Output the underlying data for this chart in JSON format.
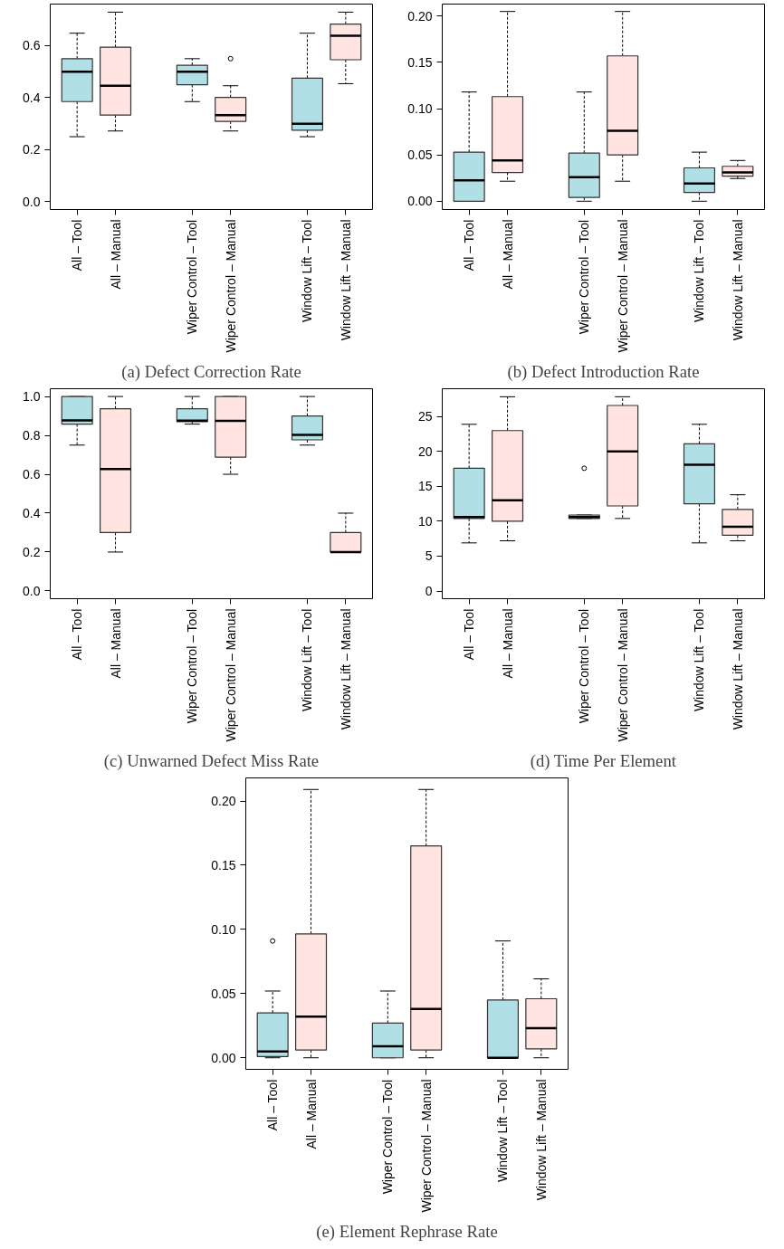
{
  "chart_data": [
    {
      "type": "box",
      "title": "(a) Defect Correction Rate",
      "categories": [
        "All – Tool",
        "All – Manual",
        null,
        "Wiper Control – Tool",
        "Wiper Control – Manual",
        null,
        "Window Lift – Tool",
        "Window Lift – Manual"
      ],
      "colors": [
        "#b0e0e6",
        "#ffe4e1",
        null,
        "#b0e0e6",
        "#ffe4e1",
        null,
        "#b0e0e6",
        "#ffe4e1"
      ],
      "ylim": [
        -0.03,
        0.76
      ],
      "yticks": [
        {
          "value": 0,
          "label": "0.0"
        },
        {
          "value": 0.2,
          "label": "0.2"
        },
        {
          "value": 0.4,
          "label": "0.4"
        },
        {
          "value": 0.6,
          "label": "0.6"
        }
      ],
      "boxes": [
        {
          "low": 0.25,
          "q1": 0.385,
          "median": 0.5,
          "q3": 0.55,
          "high": 0.648
        },
        {
          "low": 0.272,
          "q1": 0.333,
          "median": 0.446,
          "q3": 0.594,
          "high": 0.729
        },
        null,
        {
          "low": 0.385,
          "q1": 0.45,
          "median": 0.5,
          "q3": 0.525,
          "high": 0.55
        },
        {
          "low": 0.272,
          "q1": 0.309,
          "median": 0.333,
          "q3": 0.401,
          "high": 0.446,
          "outliers": [
            0.55
          ]
        },
        null,
        {
          "low": 0.25,
          "q1": 0.275,
          "median": 0.3,
          "q3": 0.475,
          "high": 0.648
        },
        {
          "low": 0.454,
          "q1": 0.546,
          "median": 0.638,
          "q3": 0.683,
          "high": 0.729
        }
      ]
    },
    {
      "type": "box",
      "title": "(b) Defect Introduction Rate",
      "categories": [
        "All – Tool",
        "All – Manual",
        null,
        "Wiper Control – Tool",
        "Wiper Control – Manual",
        null,
        "Window Lift – Tool",
        "Window Lift – Manual"
      ],
      "colors": [
        "#b0e0e6",
        "#ffe4e1",
        null,
        "#b0e0e6",
        "#ffe4e1",
        null,
        "#b0e0e6",
        "#ffe4e1"
      ],
      "ylim": [
        -0.009,
        0.213
      ],
      "yticks": [
        {
          "value": 0,
          "label": "0.00"
        },
        {
          "value": 0.05,
          "label": "0.05"
        },
        {
          "value": 0.1,
          "label": "0.10"
        },
        {
          "value": 0.15,
          "label": "0.15"
        },
        {
          "value": 0.2,
          "label": "0.20"
        }
      ],
      "boxes": [
        {
          "low": 0,
          "q1": 0,
          "median": 0.0226,
          "q3": 0.053,
          "high": 0.118
        },
        {
          "low": 0.0216,
          "q1": 0.031,
          "median": 0.044,
          "q3": 0.113,
          "high": 0.205
        },
        null,
        {
          "low": 0,
          "q1": 0.004,
          "median": 0.026,
          "q3": 0.052,
          "high": 0.118
        },
        {
          "low": 0.0216,
          "q1": 0.05,
          "median": 0.076,
          "q3": 0.157,
          "high": 0.205
        },
        null,
        {
          "low": 0,
          "q1": 0.0094,
          "median": 0.019,
          "q3": 0.036,
          "high": 0.053
        },
        {
          "low": 0.0245,
          "q1": 0.027,
          "median": 0.031,
          "q3": 0.0377,
          "high": 0.044
        }
      ]
    },
    {
      "type": "box",
      "title": "(c) Unwarned Defect Miss Rate",
      "categories": [
        "All – Tool",
        "All – Manual",
        null,
        "Wiper Control – Tool",
        "Wiper Control – Manual",
        null,
        "Window Lift – Tool",
        "Window Lift – Manual"
      ],
      "colors": [
        "#b0e0e6",
        "#ffe4e1",
        null,
        "#b0e0e6",
        "#ffe4e1",
        null,
        "#b0e0e6",
        "#ffe4e1"
      ],
      "ylim": [
        -0.04,
        1.04
      ],
      "yticks": [
        {
          "value": 0,
          "label": "0.0"
        },
        {
          "value": 0.2,
          "label": "0.2"
        },
        {
          "value": 0.4,
          "label": "0.4"
        },
        {
          "value": 0.6,
          "label": "0.6"
        },
        {
          "value": 0.8,
          "label": "0.8"
        },
        {
          "value": 1,
          "label": "1.0"
        }
      ],
      "boxes": [
        {
          "low": 0.75,
          "q1": 0.858,
          "median": 0.877,
          "q3": 1.0,
          "high": 1.0
        },
        {
          "low": 0.2,
          "q1": 0.3,
          "median": 0.627,
          "q3": 0.937,
          "high": 1.0
        },
        null,
        {
          "low": 0.858,
          "q1": 0.87,
          "median": 0.876,
          "q3": 0.937,
          "high": 1.0
        },
        {
          "low": 0.6,
          "q1": 0.688,
          "median": 0.875,
          "q3": 1.0,
          "high": 1.0
        },
        null,
        {
          "low": 0.75,
          "q1": 0.777,
          "median": 0.803,
          "q3": 0.9,
          "high": 1.0
        },
        {
          "low": 0.2,
          "q1": 0.2,
          "median": 0.2,
          "q3": 0.3,
          "high": 0.4
        }
      ]
    },
    {
      "type": "box",
      "title": "(d) Time Per Element",
      "categories": [
        "All – Tool",
        "All – Manual",
        null,
        "Wiper Control – Tool",
        "Wiper Control – Manual",
        null,
        "Window Lift – Tool",
        "Window Lift – Manual"
      ],
      "colors": [
        "#b0e0e6",
        "#ffe4e1",
        null,
        "#b0e0e6",
        "#ffe4e1",
        null,
        "#b0e0e6",
        "#ffe4e1"
      ],
      "ylim": [
        -1.1,
        29
      ],
      "yticks": [
        0,
        5,
        10,
        15,
        20,
        25
      ],
      "boxes": [
        {
          "low": 6.9,
          "q1": 10.4,
          "median": 10.6,
          "q3": 17.6,
          "high": 23.9
        },
        {
          "low": 7.2,
          "q1": 10.0,
          "median": 13.0,
          "q3": 23.0,
          "high": 27.85
        },
        null,
        {
          "low": 10.4,
          "q1": 10.4,
          "median": 10.6,
          "q3": 10.9,
          "high": 10.9,
          "outliers": [
            17.6
          ]
        },
        {
          "low": 10.4,
          "q1": 12.2,
          "median": 20.0,
          "q3": 26.6,
          "high": 27.85
        },
        null,
        {
          "low": 6.9,
          "q1": 12.5,
          "median": 18.1,
          "q3": 21.1,
          "high": 23.9
        },
        {
          "low": 7.2,
          "q1": 8.0,
          "median": 9.2,
          "q3": 11.7,
          "high": 13.8
        }
      ]
    },
    {
      "type": "box",
      "title": "(e) Element Rephrase Rate",
      "categories": [
        "All – Tool",
        "All – Manual",
        null,
        "Wiper Control – Tool",
        "Wiper Control – Manual",
        null,
        "Window Lift – Tool",
        "Window Lift – Manual"
      ],
      "colors": [
        "#b0e0e6",
        "#ffe4e1",
        null,
        "#b0e0e6",
        "#ffe4e1",
        null,
        "#b0e0e6",
        "#ffe4e1"
      ],
      "ylim": [
        -0.009,
        0.218
      ],
      "yticks": [
        {
          "value": 0,
          "label": "0.00"
        },
        {
          "value": 0.05,
          "label": "0.05"
        },
        {
          "value": 0.1,
          "label": "0.10"
        },
        {
          "value": 0.15,
          "label": "0.15"
        },
        {
          "value": 0.2,
          "label": "0.20"
        }
      ],
      "boxes": [
        {
          "low": 0,
          "q1": 0.001,
          "median": 0.005,
          "q3": 0.035,
          "high": 0.052,
          "outliers": [
            0.091
          ]
        },
        {
          "low": 0,
          "q1": 0.006,
          "median": 0.032,
          "q3": 0.0965,
          "high": 0.209
        },
        null,
        {
          "low": 0,
          "q1": 0,
          "median": 0.009,
          "q3": 0.027,
          "high": 0.052
        },
        {
          "low": 0,
          "q1": 0.006,
          "median": 0.038,
          "q3": 0.165,
          "high": 0.209
        },
        null,
        {
          "low": 0,
          "q1": 0,
          "median": 0,
          "q3": 0.045,
          "high": 0.091
        },
        {
          "low": 0,
          "q1": 0.007,
          "median": 0.023,
          "q3": 0.046,
          "high": 0.0615
        }
      ]
    }
  ]
}
